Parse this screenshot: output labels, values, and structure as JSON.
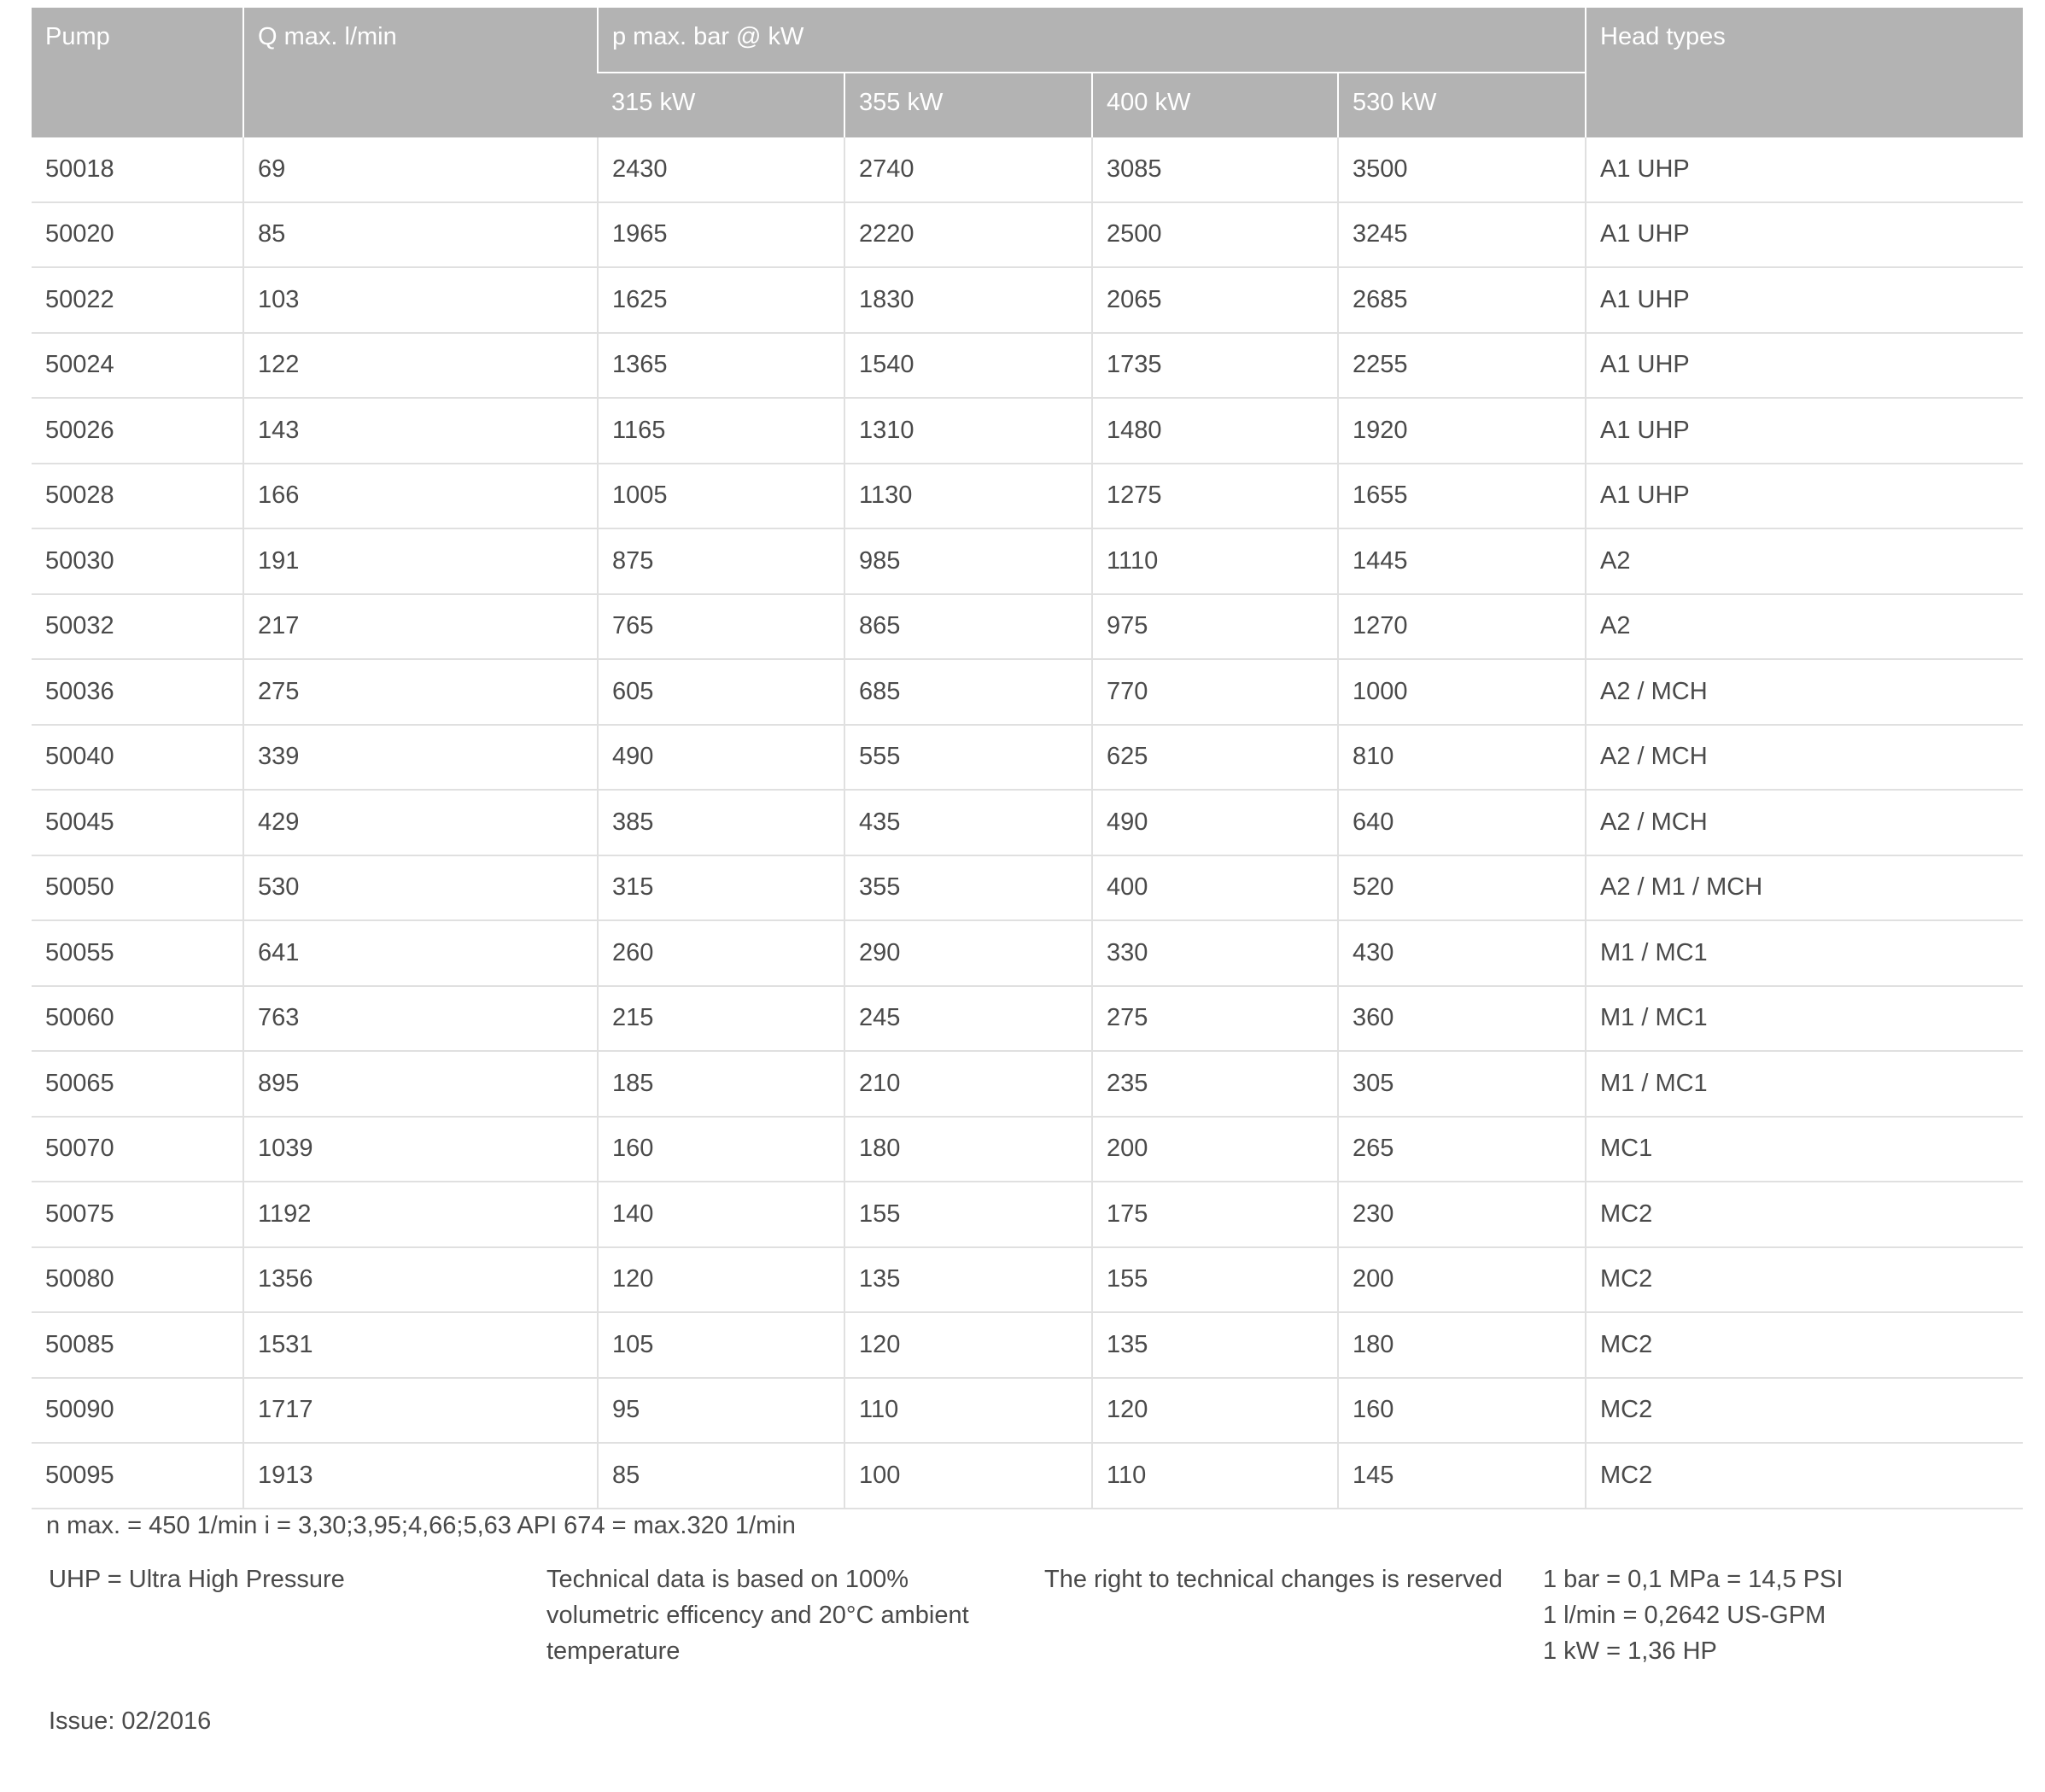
{
  "header": {
    "pump": "Pump",
    "qmax": "Q max. l/min",
    "pmax": "p max. bar @ kW",
    "power_columns": [
      "315 kW",
      "355 kW",
      "400 kW",
      "530 kW"
    ],
    "head_types": "Head types"
  },
  "rows": [
    [
      "50018",
      "69",
      "2430",
      "2740",
      "3085",
      "3500",
      "A1 UHP"
    ],
    [
      "50020",
      "85",
      "1965",
      "2220",
      "2500",
      "3245",
      "A1 UHP"
    ],
    [
      "50022",
      "103",
      "1625",
      "1830",
      "2065",
      "2685",
      "A1 UHP"
    ],
    [
      "50024",
      "122",
      "1365",
      "1540",
      "1735",
      "2255",
      "A1 UHP"
    ],
    [
      "50026",
      "143",
      "1165",
      "1310",
      "1480",
      "1920",
      "A1 UHP"
    ],
    [
      "50028",
      "166",
      "1005",
      "1130",
      "1275",
      "1655",
      "A1 UHP"
    ],
    [
      "50030",
      "191",
      "875",
      "985",
      "1110",
      "1445",
      "A2"
    ],
    [
      "50032",
      "217",
      "765",
      "865",
      "975",
      "1270",
      "A2"
    ],
    [
      "50036",
      "275",
      "605",
      "685",
      "770",
      "1000",
      "A2 / MCH"
    ],
    [
      "50040",
      "339",
      "490",
      "555",
      "625",
      "810",
      "A2 / MCH"
    ],
    [
      "50045",
      "429",
      "385",
      "435",
      "490",
      "640",
      "A2 / MCH"
    ],
    [
      "50050",
      "530",
      "315",
      "355",
      "400",
      "520",
      "A2 / M1 / MCH"
    ],
    [
      "50055",
      "641",
      "260",
      "290",
      "330",
      "430",
      "M1 / MC1"
    ],
    [
      "50060",
      "763",
      "215",
      "245",
      "275",
      "360",
      "M1 / MC1"
    ],
    [
      "50065",
      "895",
      "185",
      "210",
      "235",
      "305",
      "M1 / MC1"
    ],
    [
      "50070",
      "1039",
      "160",
      "180",
      "200",
      "265",
      "MC1"
    ],
    [
      "50075",
      "1192",
      "140",
      "155",
      "175",
      "230",
      "MC2"
    ],
    [
      "50080",
      "1356",
      "120",
      "135",
      "155",
      "200",
      "MC2"
    ],
    [
      "50085",
      "1531",
      "105",
      "120",
      "135",
      "180",
      "MC2"
    ],
    [
      "50090",
      "1717",
      "95",
      "110",
      "120",
      "160",
      "MC2"
    ],
    [
      "50095",
      "1913",
      "85",
      "100",
      "110",
      "145",
      "MC2"
    ]
  ],
  "footer": {
    "line1": "n max. = 450 1/min     i = 3,30;3,95;4,66;5,63     API 674 = max.320 1/min",
    "uhp": "UHP = Ultra High Pressure",
    "technical": [
      "Technical data is based on 100%",
      "volumetric efficency and 20°C ambient",
      "temperature"
    ],
    "rights": "The right to technical changes is reserved",
    "conversions": [
      "1 bar = 0,1 MPa = 14,5 PSI",
      "1 l/min = 0,2642 US-GPM",
      "1 kW = 1,36 HP"
    ],
    "issue": "Issue: 02/2016"
  },
  "colors": {
    "header_bg": "#b3b3b3",
    "grid": "#e0e0e0",
    "text": "#4a4a4a"
  }
}
